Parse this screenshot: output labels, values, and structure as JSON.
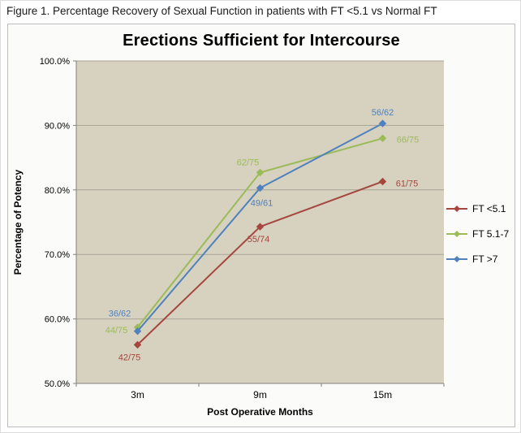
{
  "figure_caption": "Figure 1. Percentage Recovery of Sexual Function in patients with FT <5.1 vs Normal FT",
  "chart_data": {
    "type": "line",
    "title": "Erections Sufficient for Intercourse",
    "xlabel": "Post Operative Months",
    "ylabel": "Percentage of Potency",
    "categories": [
      "3m",
      "9m",
      "15m"
    ],
    "ylim": [
      50,
      100
    ],
    "ytick_step": 10,
    "ytick_labels": [
      "50.0%",
      "60.0%",
      "70.0%",
      "80.0%",
      "90.0%",
      "100.0%"
    ],
    "grid": true,
    "legend_position": "right",
    "plot_bg": "#d7d1bf",
    "gridline_color": "#a8a49a",
    "axis_color": "#808080",
    "series": [
      {
        "name": "FT <5.1",
        "color": "#a5463f",
        "values": [
          56.0,
          74.3,
          81.3
        ],
        "point_labels": [
          "42/75",
          "55/74",
          "61/75"
        ]
      },
      {
        "name": "FT 5.1-7",
        "color": "#9bbb59",
        "values": [
          58.7,
          82.7,
          88.0
        ],
        "point_labels": [
          "44/75",
          "62/75",
          "66/75"
        ]
      },
      {
        "name": "FT >7",
        "color": "#4f81bd",
        "values": [
          58.1,
          80.3,
          90.3
        ],
        "point_labels": [
          "36/62",
          "49/61",
          "56/62"
        ]
      }
    ],
    "label_offsets": [
      [
        [
          -10,
          15
        ],
        [
          -2,
          15
        ],
        [
          30,
          2
        ]
      ],
      [
        [
          -26,
          3
        ],
        [
          -15,
          -13
        ],
        [
          31,
          1
        ]
      ],
      [
        [
          -22,
          -22
        ],
        [
          2,
          18
        ],
        [
          0,
          -14
        ]
      ]
    ]
  }
}
